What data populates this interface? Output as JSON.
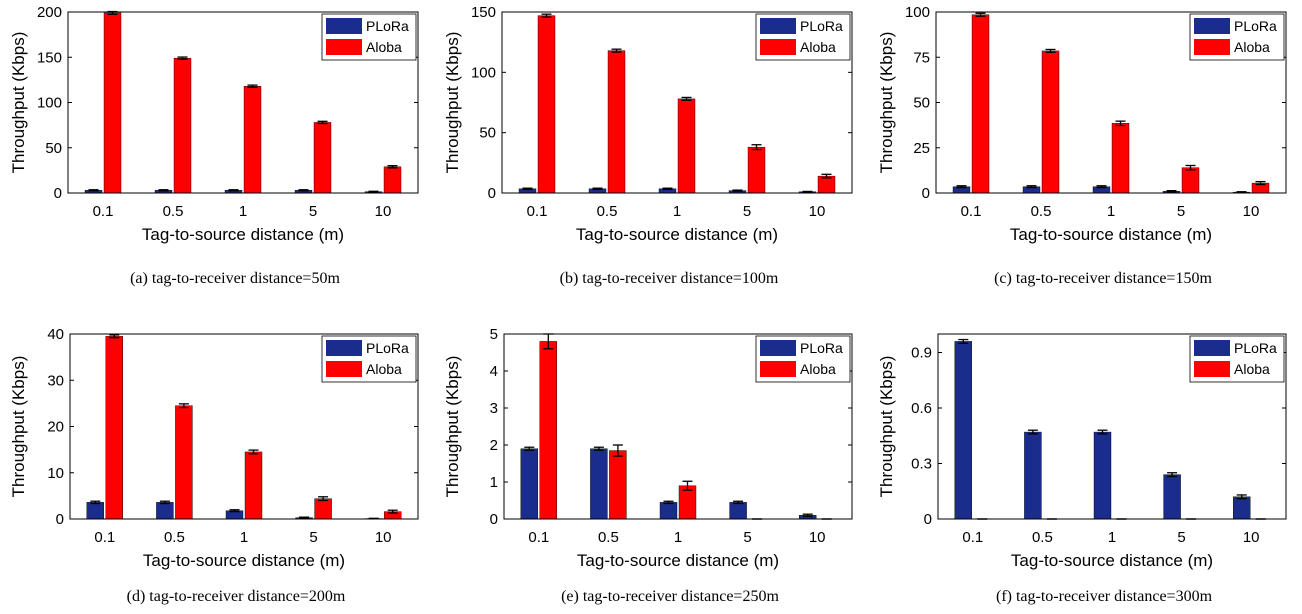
{
  "colors": {
    "plora": "#1a2c8c",
    "aloba": "#ff0000",
    "axis": "#000000"
  },
  "chart_data": [
    {
      "type": "bar",
      "caption": "(a)  tag-to-receiver distance=50m",
      "xlabel": "Tag-to-source distance (m)",
      "ylabel": "Throughput (Kbps)",
      "categories": [
        "0.1",
        "0.5",
        "1",
        "5",
        "10"
      ],
      "ylim": [
        0,
        200
      ],
      "yticks": [
        0,
        50,
        100,
        150,
        200
      ],
      "legend_position": "top-right",
      "series": [
        {
          "name": "PLoRa",
          "values": [
            3,
            3,
            3,
            3,
            1.5
          ],
          "errors": [
            0.6,
            0.6,
            0.6,
            0.6,
            0.4
          ]
        },
        {
          "name": "Aloba",
          "values": [
            199,
            149,
            118,
            78,
            29
          ],
          "errors": [
            1.5,
            1.2,
            1.2,
            1.2,
            1.2
          ]
        }
      ]
    },
    {
      "type": "bar",
      "caption": "(b)  tag-to-receiver distance=100m",
      "xlabel": "Tag-to-source distance (m)",
      "ylabel": "Throughput (Kbps)",
      "categories": [
        "0.1",
        "0.5",
        "1",
        "5",
        "10"
      ],
      "ylim": [
        0,
        150
      ],
      "yticks": [
        0,
        50,
        100,
        150
      ],
      "legend_position": "top-right",
      "series": [
        {
          "name": "PLoRa",
          "values": [
            3.5,
            3.5,
            3.5,
            2,
            1
          ],
          "errors": [
            0.5,
            0.5,
            0.5,
            0.4,
            0.3
          ]
        },
        {
          "name": "Aloba",
          "values": [
            147,
            118,
            78,
            38,
            14
          ],
          "errors": [
            1.2,
            1.2,
            1.2,
            2,
            1.5
          ]
        }
      ]
    },
    {
      "type": "bar",
      "caption": "(c)  tag-to-receiver distance=150m",
      "xlabel": "Tag-to-source distance (m)",
      "ylabel": "Throughput (Kbps)",
      "categories": [
        "0.1",
        "0.5",
        "1",
        "5",
        "10"
      ],
      "ylim": [
        0,
        100
      ],
      "yticks": [
        0,
        25,
        50,
        75,
        100
      ],
      "legend_position": "top-right",
      "series": [
        {
          "name": "PLoRa",
          "values": [
            3.5,
            3.5,
            3.5,
            1,
            0.5
          ],
          "errors": [
            0.5,
            0.5,
            0.5,
            0.3,
            0.2
          ]
        },
        {
          "name": "Aloba",
          "values": [
            98.5,
            78.5,
            38.5,
            14,
            5.5
          ],
          "errors": [
            0.8,
            0.8,
            1.2,
            1.2,
            0.8
          ]
        }
      ]
    },
    {
      "type": "bar",
      "caption": "(d)  tag-to-receiver distance=200m",
      "xlabel": "Tag-to-source distance (m)",
      "ylabel": "Throughput (Kbps)",
      "categories": [
        "0.1",
        "0.5",
        "1",
        "5",
        "10"
      ],
      "ylim": [
        0,
        40
      ],
      "yticks": [
        0,
        10,
        20,
        30,
        40
      ],
      "legend_position": "top-right",
      "series": [
        {
          "name": "PLoRa",
          "values": [
            3.6,
            3.6,
            1.8,
            0.3,
            0.1
          ],
          "errors": [
            0.25,
            0.25,
            0.2,
            0.1,
            0.05
          ]
        },
        {
          "name": "Aloba",
          "values": [
            39.5,
            24.5,
            14.5,
            4.4,
            1.6
          ],
          "errors": [
            0.3,
            0.4,
            0.4,
            0.4,
            0.3
          ]
        }
      ]
    },
    {
      "type": "bar",
      "caption": "(e)  tag-to-receiver distance=250m",
      "xlabel": "Tag-to-source distance (m)",
      "ylabel": "Throughput (Kbps)",
      "categories": [
        "0.1",
        "0.5",
        "1",
        "5",
        "10"
      ],
      "ylim": [
        0,
        5
      ],
      "yticks": [
        0,
        1,
        2,
        3,
        4,
        5
      ],
      "legend_position": "top-right",
      "series": [
        {
          "name": "PLoRa",
          "values": [
            1.9,
            1.9,
            0.45,
            0.45,
            0.1
          ],
          "errors": [
            0.04,
            0.04,
            0.03,
            0.03,
            0.03
          ]
        },
        {
          "name": "Aloba",
          "values": [
            4.8,
            1.85,
            0.9,
            0,
            0
          ],
          "errors": [
            0.2,
            0.15,
            0.12,
            0,
            0
          ]
        }
      ]
    },
    {
      "type": "bar",
      "caption": "(f)  tag-to-receiver distance=300m",
      "xlabel": "Tag-to-source distance (m)",
      "ylabel": "Throughput (Kbps)",
      "categories": [
        "0.1",
        "0.5",
        "1",
        "5",
        "10"
      ],
      "ylim": [
        0,
        1
      ],
      "yticks": [
        0,
        0.3,
        0.6,
        0.9
      ],
      "legend_position": "top-right",
      "series": [
        {
          "name": "PLoRa",
          "values": [
            0.96,
            0.47,
            0.47,
            0.24,
            0.12
          ],
          "errors": [
            0.01,
            0.01,
            0.01,
            0.01,
            0.01
          ]
        },
        {
          "name": "Aloba",
          "values": [
            0,
            0,
            0,
            0,
            0
          ],
          "errors": [
            0,
            0,
            0,
            0,
            0
          ]
        }
      ]
    }
  ]
}
